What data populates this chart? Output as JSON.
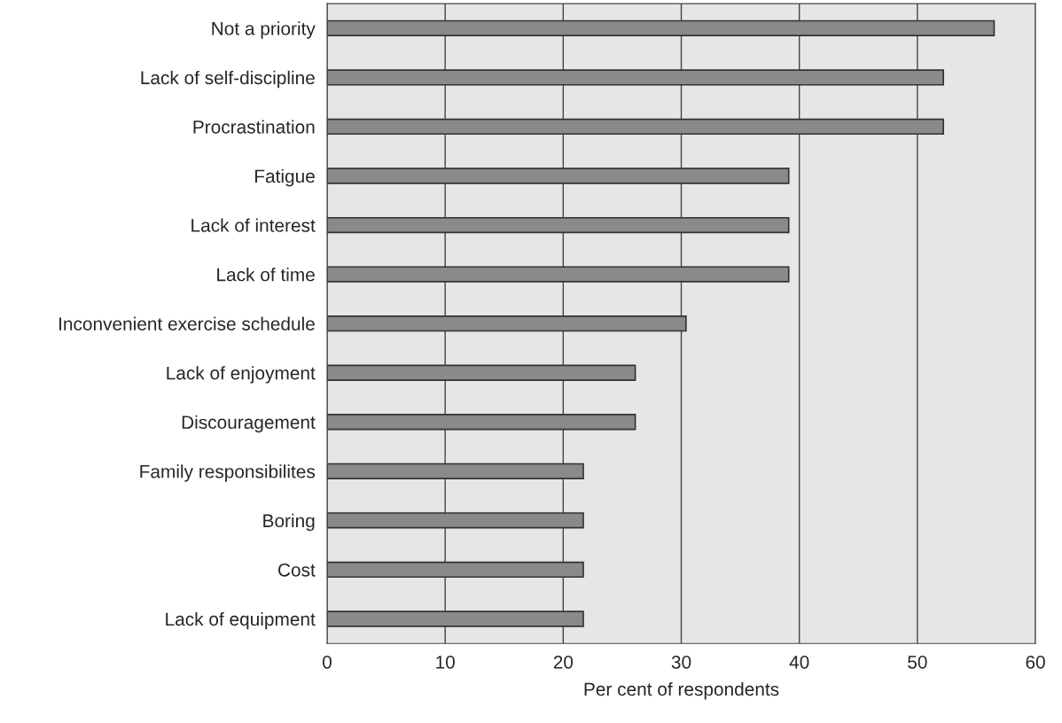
{
  "chart_data": {
    "type": "bar",
    "orientation": "horizontal",
    "xlabel": "Per cent of respondents",
    "categories": [
      "Not a priority",
      "Lack of self-discipline",
      "Procrastination",
      "Fatigue",
      "Lack of interest",
      "Lack of time",
      "Inconvenient exercise schedule",
      "Lack of enjoyment",
      "Discouragement",
      "Family responsibilites",
      "Boring",
      "Cost",
      "Lack of equipment"
    ],
    "values": [
      56.5,
      52.2,
      52.2,
      39.1,
      39.1,
      39.1,
      30.4,
      26.1,
      26.1,
      21.7,
      21.7,
      21.7,
      21.7
    ],
    "color": "#8a8a8a",
    "xlim": [
      0,
      60
    ],
    "xticks": [
      0,
      10,
      20,
      30,
      40,
      50,
      60
    ],
    "grid": "x"
  }
}
